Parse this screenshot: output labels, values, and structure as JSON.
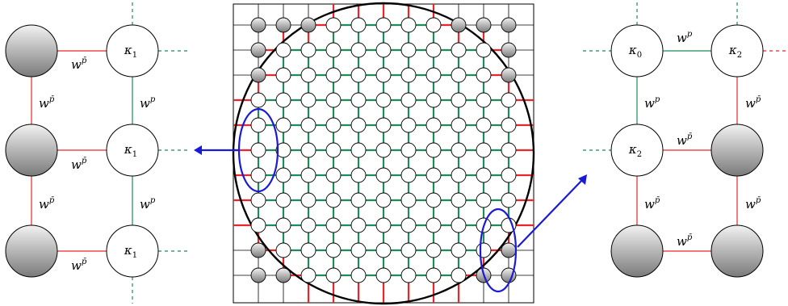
{
  "colors": {
    "red_edge": "#e8262b",
    "green_edge": "#1f8a5a",
    "blue_marker": "#1a1ad6",
    "node_fill": "#ffffff",
    "boundary_node_dark": "#7a7a7a",
    "boundary_node_light": "#f2f2f2"
  },
  "lattice": {
    "rows": 11,
    "cols": 11,
    "description_type": "square lattice inscribed in circle"
  },
  "left_panel": {
    "kappa_labels": [
      "κ",
      "κ",
      "κ"
    ],
    "kappa_subscripts": [
      "1",
      "1",
      "1"
    ],
    "w_base": "w",
    "p_bar": "p̄",
    "p": "p"
  },
  "right_panel": {
    "kappa_labels": [
      "κ",
      "κ",
      "κ"
    ],
    "kappa_subscripts": [
      "0",
      "2",
      "2"
    ],
    "w_base": "w",
    "p_bar": "p̄",
    "p": "p"
  },
  "icons": {
    "left_arrow": "arrow-left-icon",
    "right_arrow": "arrow-up-right-icon"
  }
}
